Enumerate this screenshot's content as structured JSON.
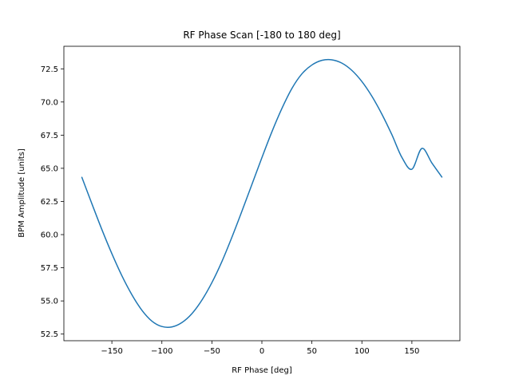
{
  "chart_data": {
    "type": "line",
    "title": "RF Phase Scan [-180 to 180 deg]",
    "xlabel": "RF Phase [deg]",
    "ylabel": "BPM Amplitude [units]",
    "xlim": [
      -198,
      198
    ],
    "ylim": [
      52.0,
      74.2
    ],
    "xticks": [
      -150,
      -100,
      -50,
      0,
      50,
      100,
      150
    ],
    "xtick_labels": [
      "−150",
      "−100",
      "−50",
      "0",
      "50",
      "100",
      "150"
    ],
    "yticks": [
      52.5,
      55.0,
      57.5,
      60.0,
      62.5,
      65.0,
      67.5,
      70.0,
      72.5
    ],
    "ytick_labels": [
      "52.5",
      "55.0",
      "57.5",
      "60.0",
      "62.5",
      "65.0",
      "67.5",
      "70.0",
      "72.5"
    ],
    "grid": false,
    "line_color": "#1f77b4",
    "series": [
      {
        "x": [
          -180,
          -170,
          -160,
          -150,
          -140,
          -130,
          -120,
          -110,
          -100,
          -90,
          -80,
          -70,
          -60,
          -50,
          -40,
          -30,
          -20,
          -10,
          0,
          10,
          20,
          30,
          40,
          50,
          60,
          70,
          80,
          90,
          100,
          110,
          120,
          130,
          140,
          150,
          160,
          170,
          180
        ],
        "values": [
          64.32,
          62.33,
          60.38,
          58.56,
          56.9,
          55.47,
          54.3,
          53.48,
          53.07,
          53.04,
          53.37,
          54.04,
          55.06,
          56.38,
          57.97,
          59.8,
          61.76,
          63.78,
          65.8,
          67.75,
          69.51,
          71.02,
          72.12,
          72.79,
          73.14,
          73.18,
          72.93,
          72.38,
          71.54,
          70.43,
          69.08,
          67.53,
          65.82,
          64.93,
          66.5,
          65.4,
          64.34
        ]
      }
    ]
  }
}
